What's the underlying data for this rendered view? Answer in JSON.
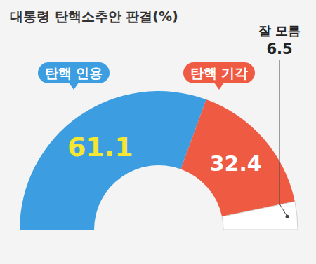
{
  "chart_data": {
    "type": "donut",
    "title": "대통령 탄핵소추안 판결(%)",
    "categories": [
      "탄핵 인용",
      "탄핵 기각",
      "잘 모름"
    ],
    "values": [
      61.1,
      32.4,
      6.5
    ],
    "colors": [
      "#3c9ee0",
      "#ef5a43",
      "#ffffff"
    ],
    "data_labels": true
  }
}
